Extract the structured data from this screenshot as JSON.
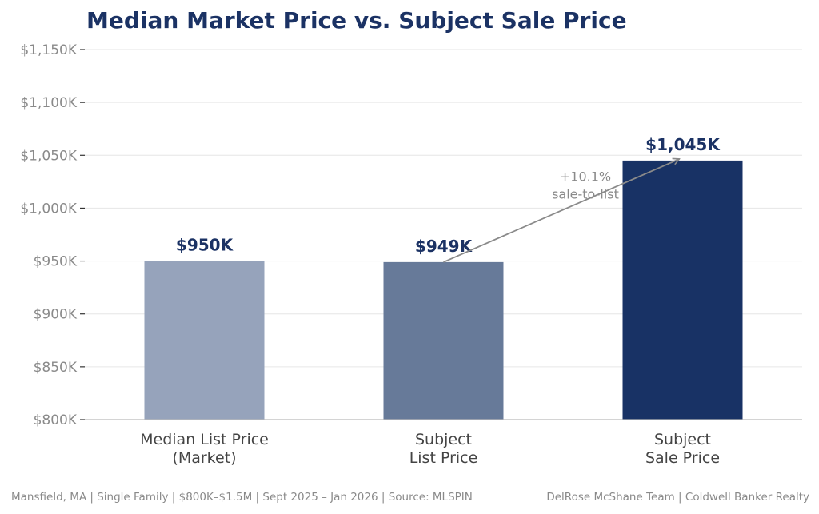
{
  "chart_data": {
    "type": "bar",
    "title": "Median Market Price vs. Subject Sale Price",
    "xlabel": "",
    "ylabel": "",
    "ylim": [
      800,
      1150
    ],
    "yticks": [
      800,
      850,
      900,
      950,
      1000,
      1050,
      1100,
      1150
    ],
    "ytick_labels": [
      "$800K",
      "$850K",
      "$900K",
      "$950K",
      "$1,000K",
      "$1,050K",
      "$1,100K",
      "$1,150K"
    ],
    "grid": true,
    "categories": [
      [
        "Median List Price",
        "(Market)"
      ],
      [
        "Subject",
        "List Price"
      ],
      [
        "Subject",
        "Sale Price"
      ]
    ],
    "values": [
      950,
      949,
      1045
    ],
    "value_labels": [
      "$950K",
      "$949K",
      "$1,045K"
    ],
    "colors": [
      "#96a3bb",
      "#677a99",
      "#183265"
    ],
    "annotations": [
      {
        "text": [
          "+10.1%",
          "sale-to-list"
        ],
        "from_category": 1,
        "from_value": 949,
        "to_category": 2,
        "to_value": 1045
      }
    ]
  },
  "footer": {
    "left": "Mansfield, MA  |  Single Family  |  $800K–$1.5M  |  Sept 2025 – Jan 2026  |  Source: MLSPIN",
    "right": "DelRose McShane Team | Coldwell Banker Realty"
  }
}
